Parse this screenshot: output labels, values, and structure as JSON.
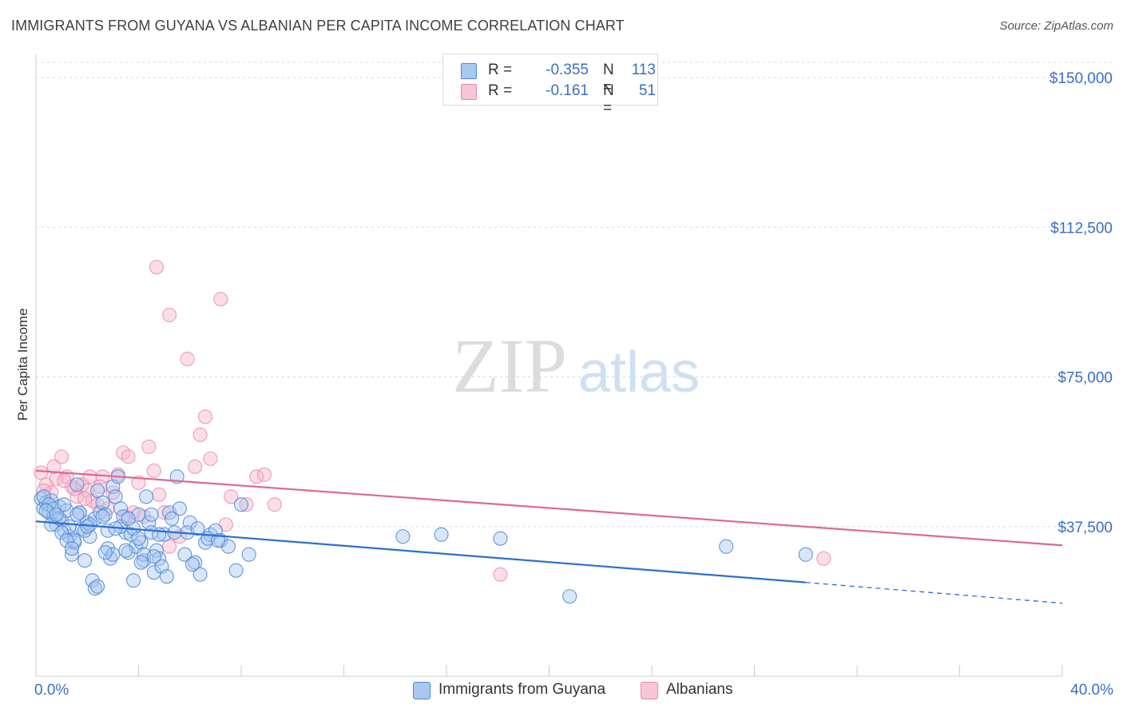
{
  "title": "IMMIGRANTS FROM GUYANA VS ALBANIAN PER CAPITA INCOME CORRELATION CHART",
  "source": "Source: ZipAtlas.com",
  "watermark": {
    "zip": "ZIP",
    "atlas": "atlas"
  },
  "legend": {
    "series1": {
      "r_label": "R =",
      "r_value": "-0.355",
      "n_label": "N =",
      "n_value": "113"
    },
    "series2": {
      "r_label": "R =",
      "r_value": "-0.161",
      "n_label": "N =",
      "n_value": "51"
    }
  },
  "colors": {
    "blue_fill": "#a9c8f0",
    "blue_stroke": "#4f86d4",
    "blue_line": "#2c6fd1",
    "pink_fill": "#f6b6ca",
    "pink_stroke": "#e888a8",
    "pink_line": "#e06792",
    "axis_text": "#3a6fc4",
    "grid": "#d8d8d8"
  },
  "chart_data": {
    "type": "scatter",
    "title": "IMMIGRANTS FROM GUYANA VS ALBANIAN PER CAPITA INCOME CORRELATION CHART",
    "xlabel": "",
    "ylabel": "Per Capita Income",
    "xlim": [
      0,
      40
    ],
    "ylim": [
      0,
      155000
    ],
    "x_tick_labels": [
      "0.0%",
      "40.0%"
    ],
    "y_ticks": [
      37500,
      75000,
      112500,
      150000
    ],
    "y_tick_labels": [
      "$37,500",
      "$75,000",
      "$112,500",
      "$150,000"
    ],
    "series": [
      {
        "name": "Immigrants from Guyana",
        "color": "#a9c8f0",
        "trend": {
          "x": [
            0,
            30
          ],
          "y": [
            38800,
            23500
          ],
          "dashed_to": [
            40,
            18300
          ]
        },
        "points": [
          [
            0.2,
            44500
          ],
          [
            0.3,
            42000
          ],
          [
            0.4,
            43500
          ],
          [
            0.5,
            41000
          ],
          [
            0.6,
            44000
          ],
          [
            0.7,
            40000
          ],
          [
            0.8,
            38000
          ],
          [
            0.9,
            42500
          ],
          [
            1.0,
            39000
          ],
          [
            1.1,
            36500
          ],
          [
            1.2,
            41500
          ],
          [
            1.3,
            35000
          ],
          [
            1.4,
            30500
          ],
          [
            1.5,
            33500
          ],
          [
            1.6,
            48000
          ],
          [
            1.7,
            41000
          ],
          [
            1.8,
            37000
          ],
          [
            1.9,
            29000
          ],
          [
            2.0,
            38500
          ],
          [
            2.1,
            35000
          ],
          [
            2.2,
            24000
          ],
          [
            2.3,
            39500
          ],
          [
            2.4,
            46500
          ],
          [
            2.5,
            41000
          ],
          [
            2.6,
            43500
          ],
          [
            2.7,
            40500
          ],
          [
            2.8,
            36500
          ],
          [
            2.9,
            29500
          ],
          [
            3.0,
            47500
          ],
          [
            3.1,
            45000
          ],
          [
            3.2,
            50000
          ],
          [
            3.3,
            42000
          ],
          [
            3.4,
            40000
          ],
          [
            3.5,
            36000
          ],
          [
            3.6,
            31000
          ],
          [
            3.7,
            35500
          ],
          [
            3.8,
            37000
          ],
          [
            3.9,
            32500
          ],
          [
            4.0,
            40500
          ],
          [
            4.1,
            33500
          ],
          [
            4.2,
            29000
          ],
          [
            4.3,
            45000
          ],
          [
            4.4,
            38500
          ],
          [
            4.5,
            36000
          ],
          [
            4.6,
            26000
          ],
          [
            4.7,
            31500
          ],
          [
            4.8,
            29500
          ],
          [
            4.9,
            27500
          ],
          [
            5.0,
            35500
          ],
          [
            5.2,
            41000
          ],
          [
            5.4,
            36000
          ],
          [
            5.6,
            42000
          ],
          [
            5.8,
            30500
          ],
          [
            6.0,
            38500
          ],
          [
            6.2,
            28500
          ],
          [
            6.4,
            25500
          ],
          [
            6.6,
            33500
          ],
          [
            6.8,
            35500
          ],
          [
            7.0,
            36500
          ],
          [
            7.2,
            34000
          ],
          [
            7.5,
            32500
          ],
          [
            7.8,
            26500
          ],
          [
            8.0,
            43000
          ],
          [
            8.3,
            30500
          ],
          [
            0.3,
            45000
          ],
          [
            0.5,
            43000
          ],
          [
            0.7,
            42000
          ],
          [
            0.9,
            39500
          ],
          [
            1.1,
            43000
          ],
          [
            1.3,
            37500
          ],
          [
            1.5,
            34000
          ],
          [
            1.7,
            41000
          ],
          [
            1.9,
            36500
          ],
          [
            2.1,
            38000
          ],
          [
            2.3,
            22000
          ],
          [
            2.6,
            40000
          ],
          [
            2.8,
            32000
          ],
          [
            3.0,
            30500
          ],
          [
            3.3,
            37500
          ],
          [
            3.5,
            31500
          ],
          [
            3.8,
            24000
          ],
          [
            4.0,
            34500
          ],
          [
            4.2,
            30500
          ],
          [
            4.5,
            40500
          ],
          [
            4.8,
            35500
          ],
          [
            5.1,
            25000
          ],
          [
            5.5,
            50000
          ],
          [
            5.9,
            36000
          ],
          [
            6.3,
            37000
          ],
          [
            6.7,
            34500
          ],
          [
            7.1,
            34000
          ],
          [
            14.3,
            35000
          ],
          [
            15.8,
            35500
          ],
          [
            18.1,
            34500
          ],
          [
            26.9,
            32500
          ],
          [
            30.0,
            30500
          ],
          [
            20.8,
            20000
          ],
          [
            0.4,
            41500
          ],
          [
            0.6,
            38000
          ],
          [
            0.8,
            40500
          ],
          [
            1.0,
            36000
          ],
          [
            1.2,
            34000
          ],
          [
            1.4,
            32000
          ],
          [
            1.6,
            40500
          ],
          [
            2.0,
            37500
          ],
          [
            2.4,
            22500
          ],
          [
            2.7,
            31000
          ],
          [
            3.1,
            37000
          ],
          [
            3.6,
            39500
          ],
          [
            4.1,
            28500
          ],
          [
            4.6,
            30000
          ],
          [
            5.3,
            39500
          ],
          [
            6.1,
            28000
          ]
        ]
      },
      {
        "name": "Albanians",
        "color": "#f6b6ca",
        "trend": {
          "x": [
            0,
            40
          ],
          "y": [
            51500,
            32800
          ]
        },
        "points": [
          [
            0.2,
            51000
          ],
          [
            0.4,
            48000
          ],
          [
            0.6,
            46000
          ],
          [
            0.8,
            49500
          ],
          [
            1.0,
            55000
          ],
          [
            1.2,
            50000
          ],
          [
            1.4,
            47500
          ],
          [
            1.6,
            45000
          ],
          [
            1.8,
            48000
          ],
          [
            2.0,
            46500
          ],
          [
            2.2,
            44000
          ],
          [
            2.4,
            43000
          ],
          [
            2.6,
            50000
          ],
          [
            2.8,
            42000
          ],
          [
            3.0,
            46000
          ],
          [
            3.2,
            50500
          ],
          [
            3.4,
            56000
          ],
          [
            3.6,
            55000
          ],
          [
            3.8,
            41000
          ],
          [
            4.0,
            48500
          ],
          [
            4.2,
            40000
          ],
          [
            4.4,
            57500
          ],
          [
            4.6,
            51500
          ],
          [
            4.8,
            45500
          ],
          [
            5.0,
            41000
          ],
          [
            5.2,
            32500
          ],
          [
            5.6,
            35000
          ],
          [
            5.9,
            79500
          ],
          [
            6.2,
            52500
          ],
          [
            6.4,
            60500
          ],
          [
            6.6,
            65000
          ],
          [
            6.8,
            54500
          ],
          [
            7.2,
            94500
          ],
          [
            7.4,
            38000
          ],
          [
            7.6,
            45000
          ],
          [
            8.2,
            43000
          ],
          [
            8.6,
            50000
          ],
          [
            8.9,
            50500
          ],
          [
            9.3,
            43000
          ],
          [
            4.7,
            102500
          ],
          [
            5.2,
            90500
          ],
          [
            0.3,
            46500
          ],
          [
            0.7,
            52500
          ],
          [
            1.1,
            49000
          ],
          [
            1.5,
            47000
          ],
          [
            1.9,
            44500
          ],
          [
            2.5,
            47500
          ],
          [
            3.5,
            40000
          ],
          [
            18.1,
            25500
          ],
          [
            30.7,
            29500
          ],
          [
            2.1,
            50000
          ]
        ]
      }
    ]
  },
  "bottom_legend": [
    "Immigrants from Guyana",
    "Albanians"
  ]
}
